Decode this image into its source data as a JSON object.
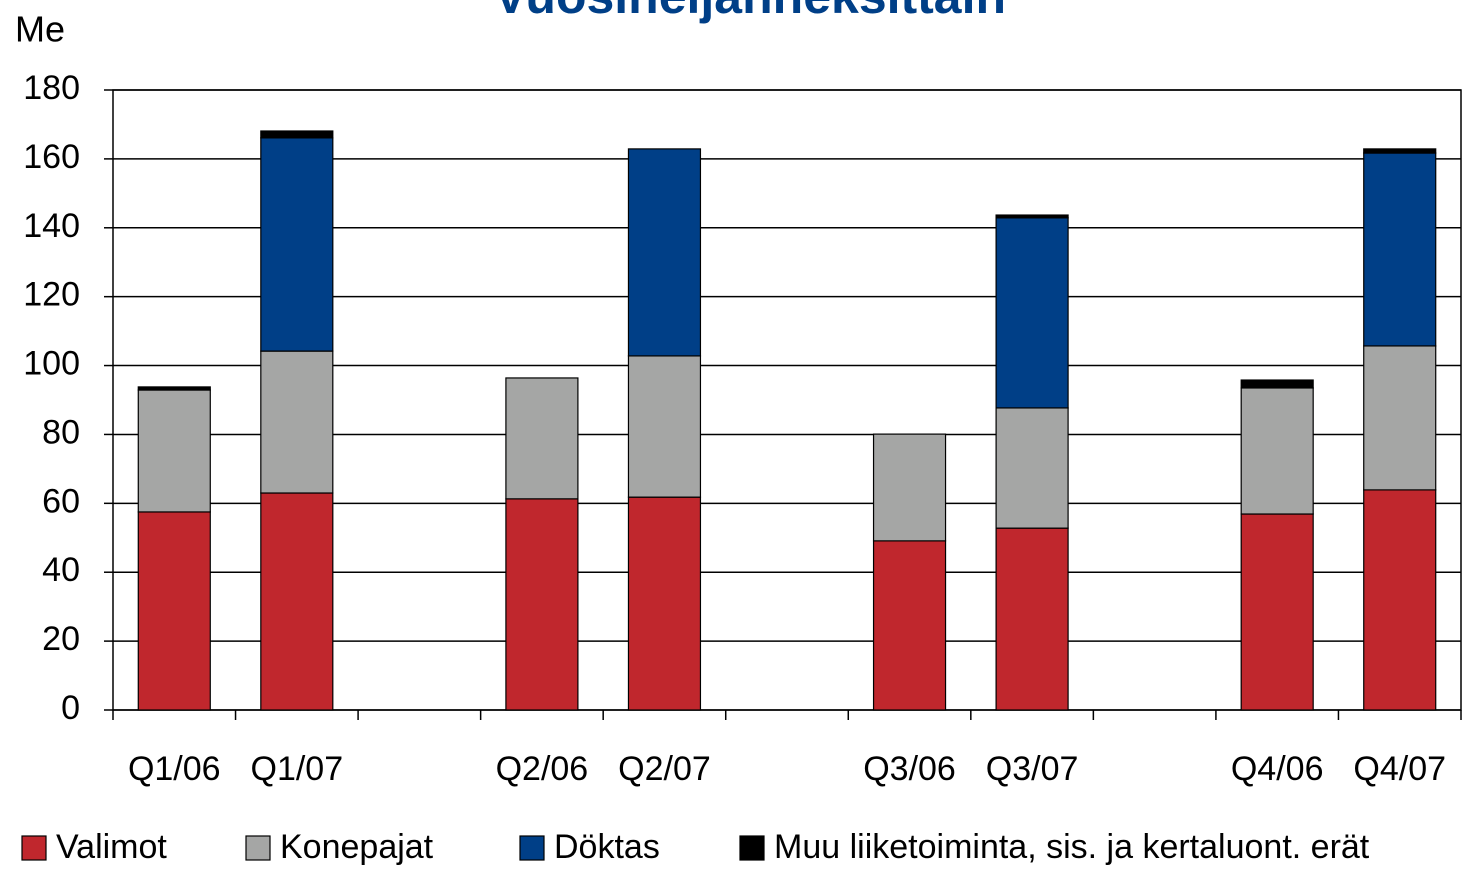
{
  "chart_data": {
    "type": "stacked_bar",
    "title": "Vuosineljänneksittäin",
    "y_label": "Me",
    "categories": [
      "Q1/06",
      "Q1/07",
      null,
      "Q2/06",
      "Q2/07",
      null,
      "Q3/06",
      "Q3/07",
      null,
      "Q4/06",
      "Q4/07"
    ],
    "series": [
      {
        "name": "Valimot",
        "color": "#c0272d",
        "values": [
          57.5,
          63.0,
          null,
          61.3,
          61.8,
          null,
          49.1,
          52.8,
          null,
          56.9,
          63.9
        ]
      },
      {
        "name": "Konepajat",
        "color": "#a5a6a5",
        "values": [
          35.4,
          41.2,
          null,
          35.1,
          41.0,
          null,
          31.0,
          34.9,
          null,
          36.6,
          41.8
        ]
      },
      {
        "name": "Döktas",
        "color": "#003f87",
        "values": [
          0,
          61.9,
          null,
          0,
          60.1,
          null,
          0,
          55.2,
          null,
          0,
          56.0
        ]
      },
      {
        "name": "Muu liiketoiminta, sis. ja kertaluont. erät",
        "color": "#000000",
        "values": [
          0.9,
          2.0,
          null,
          0,
          0,
          null,
          0,
          0.8,
          null,
          2.3,
          1.2
        ]
      }
    ],
    "ylim": [
      0,
      180
    ],
    "yticks": [
      0,
      20,
      40,
      60,
      80,
      100,
      120,
      140,
      160,
      180
    ],
    "grid": true,
    "legend": "bottom"
  }
}
